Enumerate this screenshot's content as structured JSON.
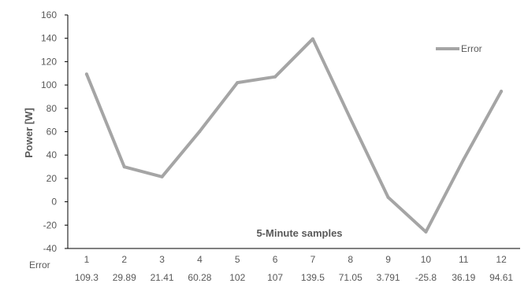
{
  "chart_data": {
    "type": "line",
    "categories": [
      "1",
      "2",
      "3",
      "4",
      "5",
      "6",
      "7",
      "8",
      "9",
      "10",
      "11",
      "12"
    ],
    "series": [
      {
        "name": "Error",
        "values": [
          109.3,
          29.89,
          21.41,
          60.28,
          102,
          107,
          139.5,
          71.05,
          3.791,
          -25.8,
          36.19,
          94.61
        ],
        "color": "#a5a5a5"
      }
    ],
    "table_labels": [
      "109.3",
      "29.89",
      "21.41",
      "60.28",
      "102",
      "107",
      "139.5",
      "71.05",
      "3.791",
      "-25.8",
      "36.19",
      "94.61"
    ],
    "ylabel": "Power [W]",
    "annotation": "5-Minute samples",
    "ylim": [
      -40,
      160
    ],
    "yticks": [
      -40,
      -20,
      0,
      20,
      40,
      60,
      80,
      100,
      120,
      140,
      160
    ],
    "grid": false,
    "legend": "top-right"
  }
}
